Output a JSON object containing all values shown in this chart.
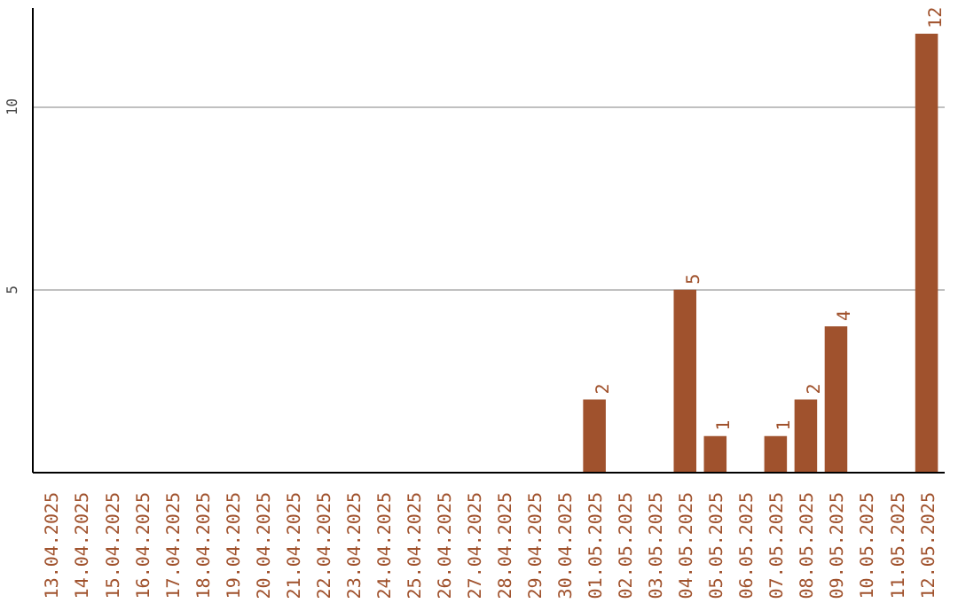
{
  "chart_data": {
    "type": "bar",
    "categories": [
      "13.04.2025",
      "14.04.2025",
      "15.04.2025",
      "16.04.2025",
      "17.04.2025",
      "18.04.2025",
      "19.04.2025",
      "20.04.2025",
      "21.04.2025",
      "22.04.2025",
      "23.04.2025",
      "24.04.2025",
      "25.04.2025",
      "26.04.2025",
      "27.04.2025",
      "28.04.2025",
      "29.04.2025",
      "30.04.2025",
      "01.05.2025",
      "02.05.2025",
      "03.05.2025",
      "04.05.2025",
      "05.05.2025",
      "06.05.2025",
      "07.05.2025",
      "08.05.2025",
      "09.05.2025",
      "10.05.2025",
      "11.05.2025",
      "12.05.2025"
    ],
    "values": [
      0,
      0,
      0,
      0,
      0,
      0,
      0,
      0,
      0,
      0,
      0,
      0,
      0,
      0,
      0,
      0,
      0,
      0,
      2,
      0,
      0,
      5,
      1,
      0,
      1,
      2,
      4,
      0,
      0,
      12
    ],
    "value_labels": [
      null,
      null,
      null,
      null,
      null,
      null,
      null,
      null,
      null,
      null,
      null,
      null,
      null,
      null,
      null,
      null,
      null,
      null,
      "2",
      null,
      null,
      "5",
      "1",
      null,
      "1",
      "2",
      "4",
      null,
      null,
      "12"
    ],
    "color": "#a0522d",
    "ylim": [
      0,
      12.7
    ],
    "yticks": [
      5,
      10
    ],
    "grid": "y"
  }
}
